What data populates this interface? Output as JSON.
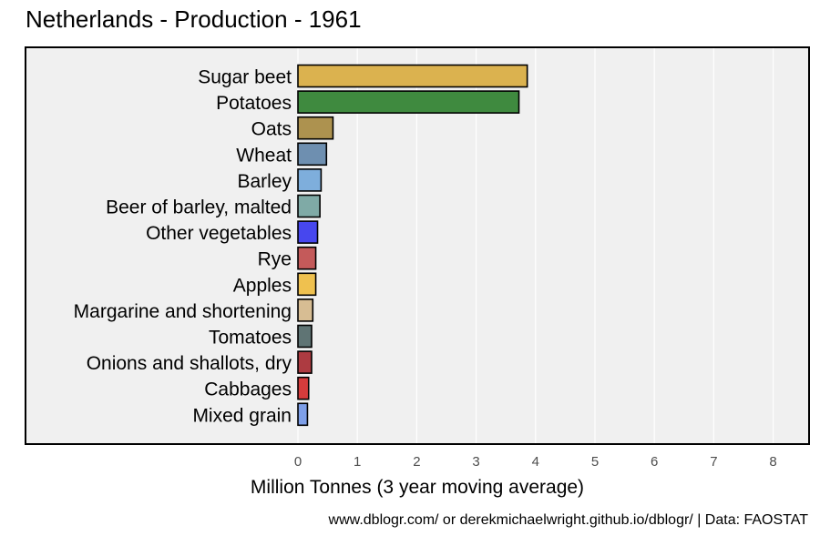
{
  "title": "Netherlands - Production - 1961",
  "caption": "www.dblogr.com/ or derekmichaelwright.github.io/dblogr/ | Data: FAOSTAT",
  "chart_data": {
    "type": "bar",
    "orientation": "horizontal",
    "title": "Netherlands - Production - 1961",
    "xlabel": "Million Tonnes (3 year moving average)",
    "ylabel": "",
    "xlim": [
      0,
      8.6
    ],
    "xticks": [
      0,
      1,
      2,
      3,
      4,
      5,
      6,
      7,
      8
    ],
    "grid": true,
    "legend": "none",
    "categories": [
      "Sugar beet",
      "Potatoes",
      "Oats",
      "Wheat",
      "Barley",
      "Beer of barley, malted",
      "Other vegetables",
      "Rye",
      "Apples",
      "Margarine and shortening",
      "Tomatoes",
      "Onions and shallots, dry",
      "Cabbages",
      "Mixed grain"
    ],
    "values": [
      3.86,
      3.72,
      0.59,
      0.48,
      0.39,
      0.37,
      0.33,
      0.3,
      0.3,
      0.25,
      0.23,
      0.23,
      0.18,
      0.16
    ],
    "colors": [
      "#dbb24f",
      "#3f8a3f",
      "#ad924f",
      "#6e8fb0",
      "#7eaedc",
      "#7faaa6",
      "#4747ee",
      "#c45a5a",
      "#efc14f",
      "#d7bd93",
      "#5f7474",
      "#ad3b41",
      "#d63c3c",
      "#7e9fe8"
    ]
  }
}
